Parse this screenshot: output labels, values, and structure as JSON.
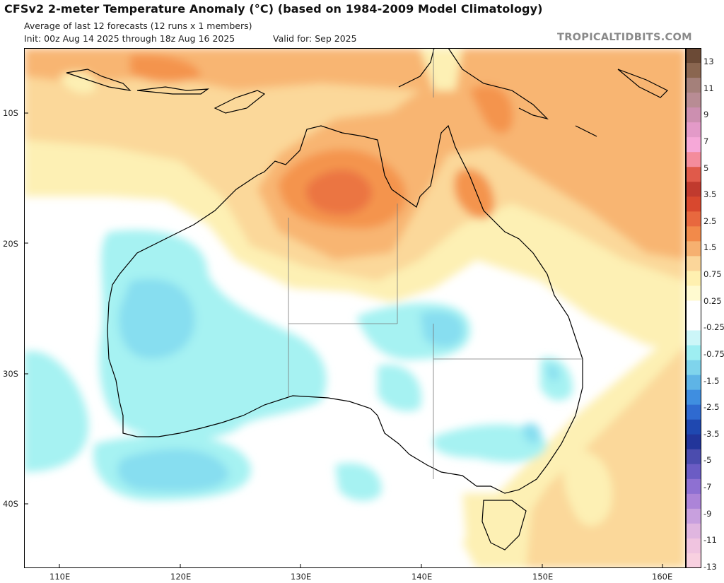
{
  "header": {
    "title": "CFSv2 2-meter Temperature Anomaly (°C) (based on 1984-2009 Model Climatology)",
    "subtitle": "Average of last 12 forecasts (12 runs x 1 members)",
    "init": "Init: 00z Aug 14 2025 through 18z Aug 16 2025",
    "valid": "Valid for: Sep 2025",
    "brand": "TROPICALTIDBITS.COM"
  },
  "axes": {
    "lat_labels": [
      "10S",
      "20S",
      "30S",
      "40S"
    ],
    "lon_labels": [
      "110E",
      "120E",
      "130E",
      "140E",
      "150E",
      "160E"
    ]
  },
  "colorbar": {
    "labels": [
      "13",
      "11",
      "9",
      "7",
      "5",
      "3.5",
      "2.5",
      "1.5",
      "0.75",
      "0.25",
      "-0.25",
      "-0.75",
      "-1.5",
      "-2.5",
      "-3.5",
      "-5",
      "-7",
      "-9",
      "-11",
      "-13"
    ],
    "colors": [
      "#6b4a36",
      "#8a6650",
      "#a4807a",
      "#b88c94",
      "#cc8fb0",
      "#e39ac8",
      "#f6a8d8",
      "#f48c9c",
      "#e05a4a",
      "#c03a2e",
      "#d8482e",
      "#e8683e",
      "#f28a4a",
      "#f6b070",
      "#fbd69a",
      "#fff0b0",
      "#fffad0",
      "#ffffff",
      "#ffffff",
      "#ccf6f8",
      "#9eeef2",
      "#7fd4ec",
      "#5eb4e6",
      "#3f8ee0",
      "#2f6ad0",
      "#1f48b0",
      "#22359a",
      "#4b4cae",
      "#6b5cc4",
      "#8e70d2",
      "#ac84d8",
      "#c8a0de",
      "#e0b6e0",
      "#f0c4e0",
      "#f8d0e0"
    ]
  },
  "field_colors": {
    "ocean_neutral": "#ffffff",
    "warm_light": "#fdf0b4",
    "warm_med": "#fbd89a",
    "warm": "#f8b572",
    "hot": "#f4944e",
    "hotter": "#eb7442",
    "cool_light": "#a6f2f2",
    "cool": "#87def0",
    "cooler": "#6ab8e8"
  }
}
